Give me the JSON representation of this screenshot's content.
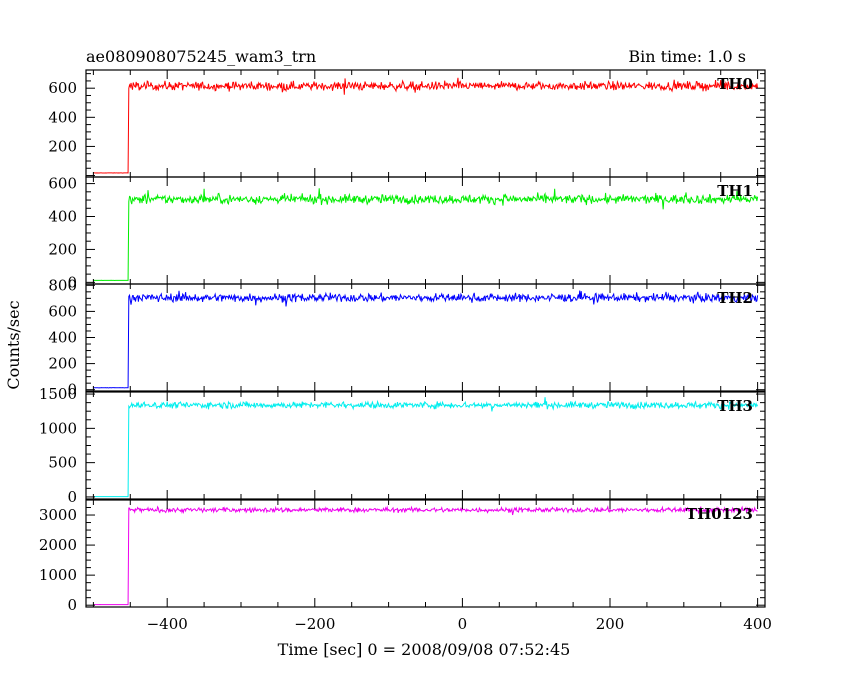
{
  "header": {
    "title": "ae080908075245_wam3_trn",
    "bin_time": "Bin time: 1.0 s"
  },
  "chart_data": {
    "type": "line",
    "xlabel": "Time [sec] 0 = 2008/09/08 07:52:45",
    "ylabel": "Counts/sec",
    "xlim": [
      -510,
      410
    ],
    "xticks": [
      -400,
      -200,
      0,
      200,
      400
    ],
    "xtick_labels": [
      "−400",
      "−200",
      "0",
      "200",
      "400"
    ],
    "step_time": -452,
    "start_time": -500,
    "end_time": 400,
    "panels": [
      {
        "name": "TH0",
        "color": "#ff0000",
        "ylim": [
          -10,
          725
        ],
        "yticks": [
          200,
          400,
          600
        ],
        "ytick_labels": [
          "200",
          "400",
          "600"
        ],
        "pre_level": 18,
        "post_level": 615,
        "noise": 28
      },
      {
        "name": "TH1",
        "color": "#00ee00",
        "ylim": [
          -10,
          640
        ],
        "yticks": [
          0,
          200,
          400,
          600
        ],
        "ytick_labels": [
          "0",
          "200",
          "400",
          "600"
        ],
        "pre_level": 12,
        "post_level": 505,
        "noise": 26
      },
      {
        "name": "TH2",
        "color": "#0000ff",
        "ylim": [
          -10,
          810
        ],
        "yticks": [
          0,
          200,
          400,
          600,
          800
        ],
        "ytick_labels": [
          "0",
          "200",
          "400",
          "600",
          "800"
        ],
        "pre_level": 15,
        "post_level": 705,
        "noise": 30
      },
      {
        "name": "TH3",
        "color": "#00eeee",
        "ylim": [
          -30,
          1530
        ],
        "yticks": [
          0,
          500,
          1000,
          1500
        ],
        "ytick_labels": [
          "0",
          "500",
          "1000",
          "1500"
        ],
        "pre_level": 5,
        "post_level": 1340,
        "noise": 45
      },
      {
        "name": "TH0123",
        "color": "#ee00ee",
        "ylim": [
          -60,
          3500
        ],
        "yticks": [
          0,
          1000,
          2000,
          3000
        ],
        "ytick_labels": [
          "0",
          "1000",
          "2000",
          "3000"
        ],
        "pre_level": 20,
        "post_level": 3170,
        "noise": 75
      }
    ]
  }
}
